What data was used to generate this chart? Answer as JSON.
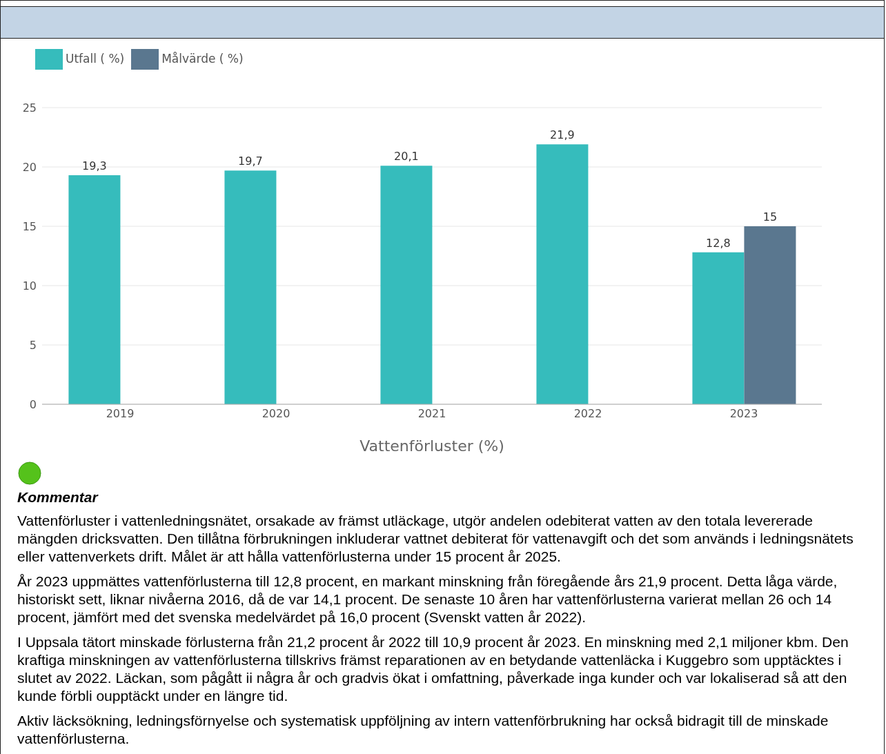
{
  "chart_data": {
    "type": "bar",
    "xlabel": "Vattenförluster (%)",
    "categories": [
      "2019",
      "2020",
      "2021",
      "2022",
      "2023"
    ],
    "series": [
      {
        "name": "Utfall ( %)",
        "color": "#36bcbc",
        "values": [
          19.3,
          19.7,
          20.1,
          21.9,
          12.8
        ],
        "value_labels": [
          "19,3",
          "19,7",
          "20,1",
          "21,9",
          "12,8"
        ]
      },
      {
        "name": "Målvärde ( %)",
        "color": "#5a778f",
        "values": [
          null,
          null,
          null,
          null,
          15
        ],
        "value_labels": [
          null,
          null,
          null,
          null,
          "15"
        ]
      }
    ],
    "ylim": [
      0,
      25
    ],
    "yticks": [
      0,
      5,
      10,
      15,
      20,
      25
    ],
    "grid": "y",
    "legend": "top left",
    "annotations": [
      "Kommentar",
      "Vattenförluster i vattenledningsnätet, orsakade av främst utläckage, utgör andelen odebiterat vatten av den totala levererade mängden dricksvatten. Den tillåtna förbrukningen inkluderar vattnet debiterat för vattenavgift och det som används i ledningsnätets eller vattenverkets drift. Målet är att hålla vattenförlusterna under 15 procent år 2025.",
      "År 2023 uppmättes vattenförlusterna till 12,8 procent, en markant minskning från föregående års 21,9 procent. Detta låga värde, historiskt sett, liknar nivåerna 2016, då de var 14,1 procent. De senaste 10 åren har vattenförlusterna varierat mellan 26 och 14 procent, jämfört med det svenska medelvärdet på 16,0 procent (Svenskt vatten år 2022).",
      "I Uppsala tätort minskade förlusterna från 21,2 procent år 2022 till 10,9 procent år 2023. En minskning med 2,1 miljoner kbm. Den kraftiga minskningen av vattenförlusterna tillskrivs främst reparationen av en betydande vattenläcka i Kuggebro som upptäcktes i slutet av 2022. Läckan, som pågått ii några år och gradvis ökat i omfattning, påverkade inga kunder och var lokaliserad så att den kunde förbli oupptäckt under en längre tid.",
      "Aktiv läcksökning, ledningsförnyelse och systematisk uppföljning av intern vattenförbrukning har också bidragit till de minskade vattenförlusterna."
    ]
  }
}
